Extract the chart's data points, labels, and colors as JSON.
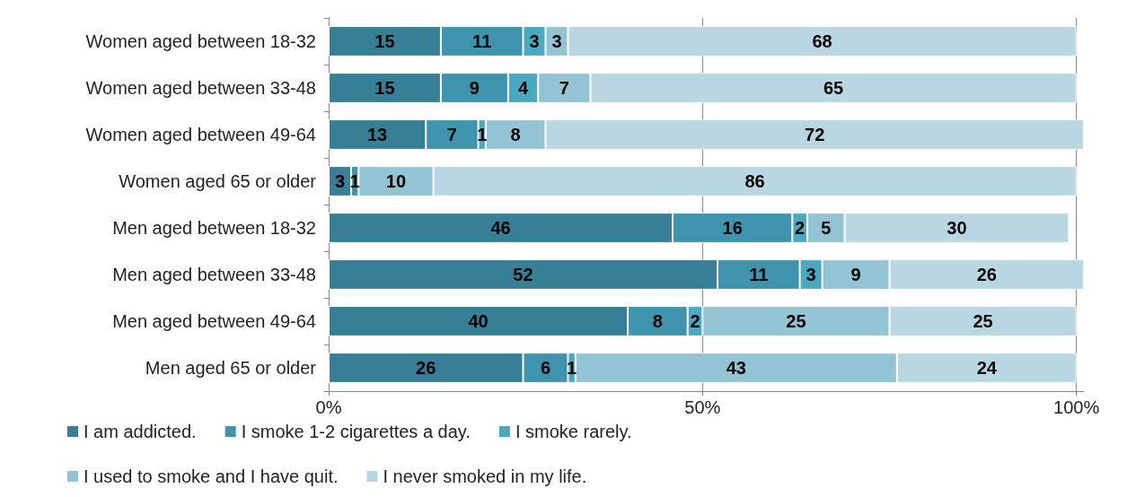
{
  "chart_data": {
    "type": "bar",
    "orientation": "horizontal",
    "stacked": true,
    "data_labels": true,
    "grid": "x",
    "legend": "bottom",
    "categories": [
      "Women aged between 18-32",
      "Women aged between 33-48",
      "Women aged between 49-64",
      "Women aged 65 or older",
      "Men aged between 18-32",
      "Men aged between 33-48",
      "Men aged between 49-64",
      "Men aged 65 or older"
    ],
    "xlim": [
      0,
      101
    ],
    "xticks": [
      {
        "value": 0,
        "label": "0%"
      },
      {
        "value": 50,
        "label": "50%"
      },
      {
        "value": 100,
        "label": "100%"
      }
    ],
    "series": [
      {
        "name": "I am addicted.",
        "color": "#367f96",
        "values": [
          15,
          15,
          13,
          3,
          46,
          52,
          40,
          26
        ]
      },
      {
        "name": "I smoke 1-2 cigarettes a day.",
        "color": "#3f93ac",
        "values": [
          11,
          9,
          7,
          1,
          16,
          11,
          8,
          6
        ]
      },
      {
        "name": "I smoke rarely.",
        "color": "#4aa8c0",
        "values": [
          3,
          4,
          1,
          null,
          2,
          3,
          2,
          1
        ]
      },
      {
        "name": "I used to smoke and I have quit.",
        "color": "#93c4d4",
        "values": [
          3,
          7,
          8,
          10,
          5,
          9,
          25,
          43
        ]
      },
      {
        "name": "I never smoked in my life.",
        "color": "#b9d7e2",
        "values": [
          68,
          65,
          72,
          86,
          30,
          26,
          25,
          24
        ]
      }
    ]
  }
}
